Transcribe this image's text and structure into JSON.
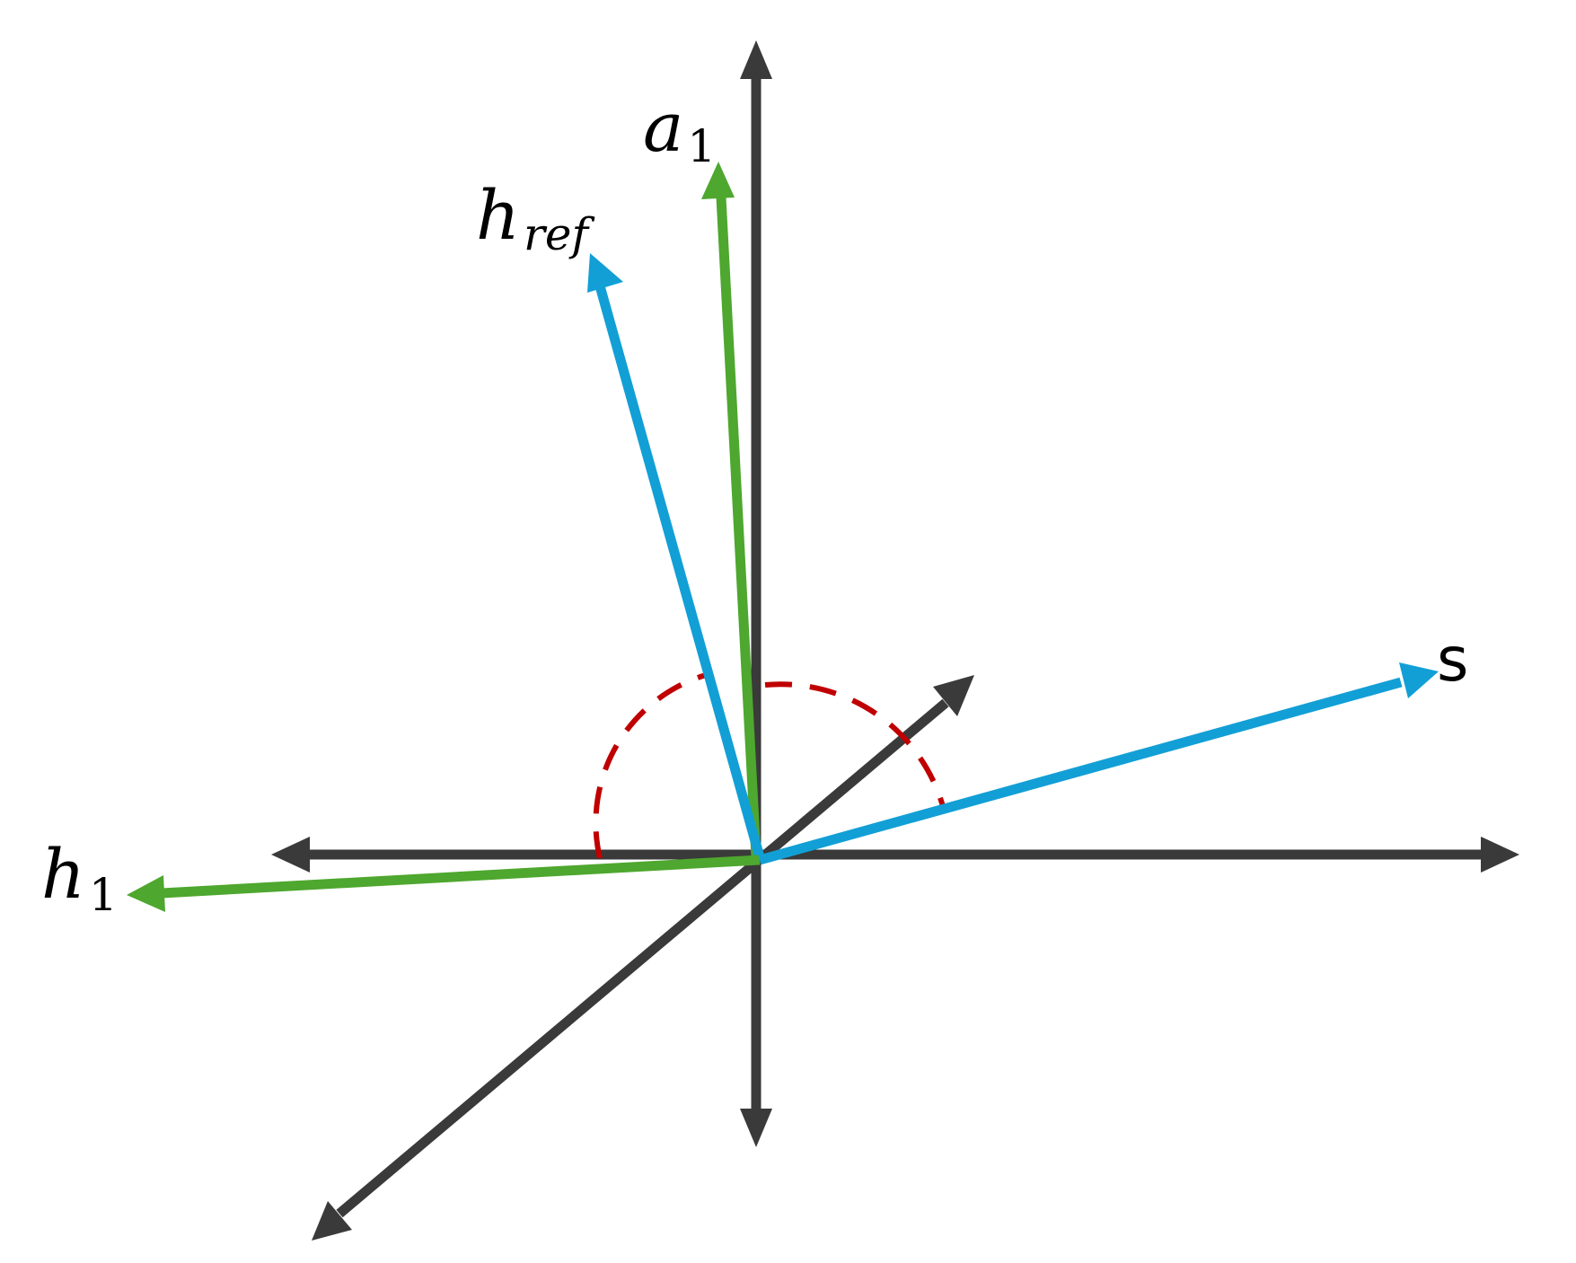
{
  "colors": {
    "axis": "#3a3a3a",
    "green": "#4ea72e",
    "blue": "#129fd6",
    "arc": "#c00000",
    "background": "#ffffff"
  },
  "labels": {
    "a1": {
      "main": "a",
      "sub": "1"
    },
    "href": {
      "main": "h",
      "sub": "ref"
    },
    "h1": {
      "main": "h",
      "sub": "1"
    },
    "s": {
      "main": "s"
    }
  },
  "axes": [
    "y-axis",
    "x-axis",
    "z-axis"
  ],
  "vectors": [
    {
      "name": "a1",
      "color": "green"
    },
    {
      "name": "href",
      "color": "blue"
    },
    {
      "name": "h1",
      "color": "green"
    },
    {
      "name": "s",
      "color": "blue"
    }
  ],
  "angle_arcs": [
    {
      "between": [
        "h1",
        "a1"
      ],
      "style": "dashed"
    },
    {
      "between": [
        "a1",
        "s"
      ],
      "style": "dashed"
    }
  ]
}
